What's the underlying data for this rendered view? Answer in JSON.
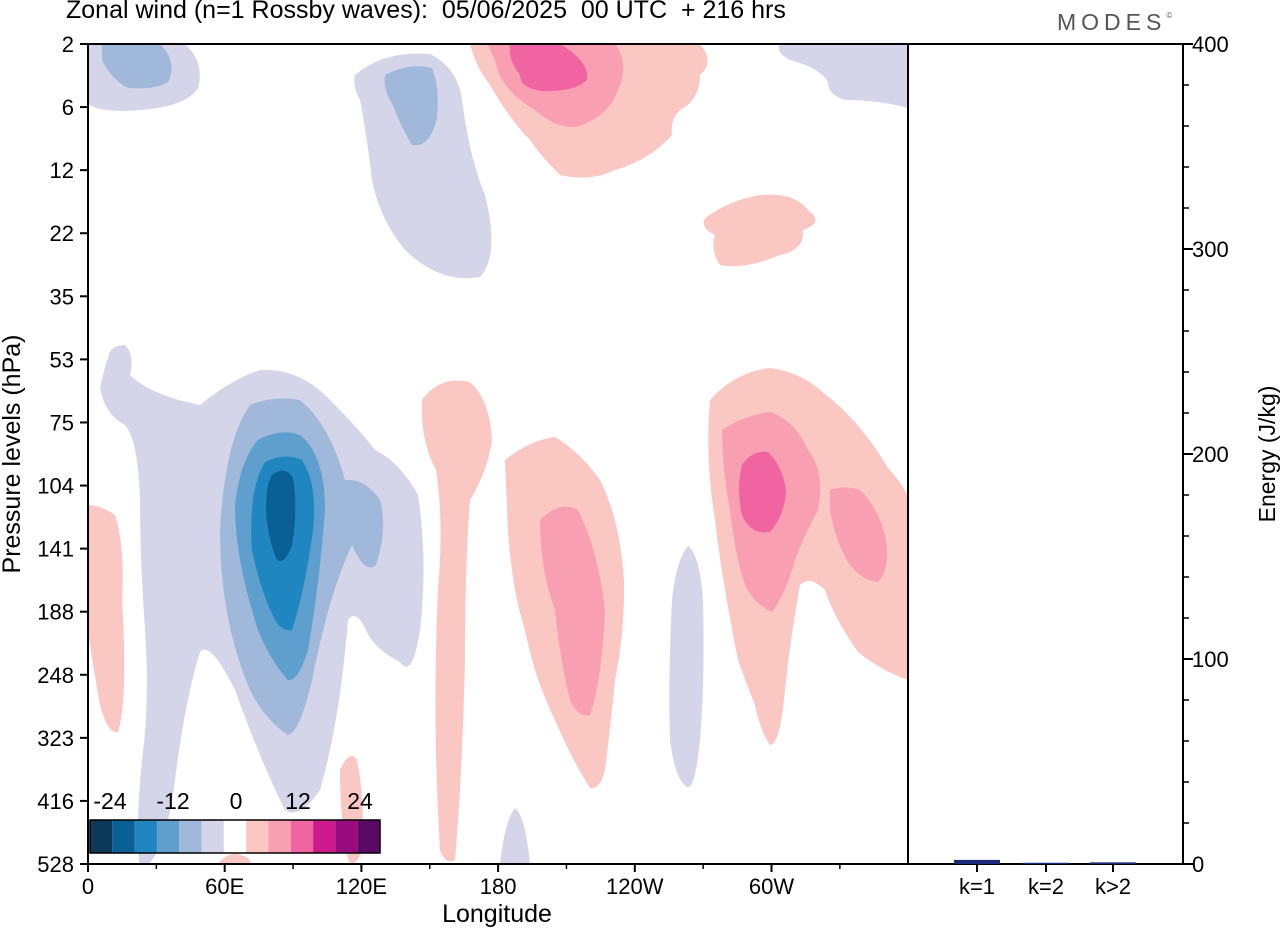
{
  "header": {
    "title": "Zonal wind (n=1 Rossby waves):  05/06/2025  00 UTC  + 216 hrs",
    "logo": "MODES",
    "logo_mark": "©"
  },
  "chart_data": [
    {
      "type": "contour",
      "xlabel": "Longitude",
      "ylabel": "Pressure levels (hPa)",
      "x_ticks": [
        "0",
        "60E",
        "120E",
        "180",
        "120W",
        "60W"
      ],
      "y_ticks": [
        "2",
        "6",
        "12",
        "22",
        "35",
        "53",
        "75",
        "104",
        "141",
        "188",
        "248",
        "323",
        "416",
        "528"
      ],
      "colorbar": {
        "labels": [
          "-24",
          "-12",
          "0",
          "12",
          "24"
        ],
        "levels": [
          -30,
          -24,
          -18,
          -12,
          -6,
          -3,
          3,
          6,
          12,
          18,
          24,
          30
        ],
        "colors": [
          "#0d3a57",
          "#0a5f95",
          "#1f86bf",
          "#5e9fcd",
          "#a0b8d9",
          "#d4d5e8",
          "#ffffff",
          "#fac7c2",
          "#f99fb2",
          "#f064a2",
          "#cc1a8c",
          "#9a0b7f",
          "#5a0a65"
        ]
      },
      "fills": {
        "weak_neg": "#d4d5e8",
        "neg1": "#a0b8d9",
        "neg2": "#5e9fcd",
        "neg3": "#1f86bf",
        "neg4": "#0a5f95",
        "weak_pos": "#fac7c2",
        "pos1": "#f99fb2",
        "pos2": "#f064a2"
      }
    },
    {
      "type": "bar",
      "categories": [
        "k=1",
        "k=2",
        "k>2"
      ],
      "values": [
        2.0,
        0.6,
        0.8
      ],
      "ylabel": "Energy (J/kg)",
      "ylim": [
        0,
        400
      ],
      "y_ticks": [
        0,
        100,
        200,
        300,
        400
      ],
      "colors": [
        "#1a2a78",
        "#1a2a78",
        "#1a2a78"
      ]
    }
  ]
}
